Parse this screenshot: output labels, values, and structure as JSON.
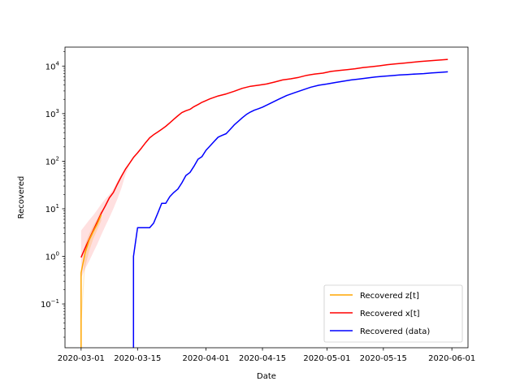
{
  "chart_data": {
    "type": "line",
    "xlabel": "Date",
    "ylabel": "Recovered",
    "y_scale": "log",
    "xlim": [
      "2020-02-26",
      "2020-06-05"
    ],
    "ylim": [
      0.012,
      25000
    ],
    "x_ticks": [
      {
        "date": "2020-03-01",
        "label": "2020-03-01"
      },
      {
        "date": "2020-03-15",
        "label": "2020-03-15"
      },
      {
        "date": "2020-04-01",
        "label": "2020-04-01"
      },
      {
        "date": "2020-04-15",
        "label": "2020-04-15"
      },
      {
        "date": "2020-05-01",
        "label": "2020-05-01"
      },
      {
        "date": "2020-05-15",
        "label": "2020-05-15"
      },
      {
        "date": "2020-06-01",
        "label": "2020-06-01"
      }
    ],
    "y_ticks": [
      {
        "value": 0.1,
        "mantissa": "10",
        "exponent": "−1"
      },
      {
        "value": 1,
        "mantissa": "10",
        "exponent": "0"
      },
      {
        "value": 10,
        "mantissa": "10",
        "exponent": "1"
      },
      {
        "value": 100,
        "mantissa": "10",
        "exponent": "2"
      },
      {
        "value": 1000,
        "mantissa": "10",
        "exponent": "3"
      },
      {
        "value": 10000,
        "mantissa": "10",
        "exponent": "4"
      }
    ],
    "grid": false,
    "legend_position": "lower-right",
    "series": [
      {
        "name": "Recovered z[t]",
        "color": "#ffa500",
        "points": [
          [
            "2020-03-01",
            0.001
          ],
          [
            "2020-03-01",
            0.45
          ],
          [
            "2020-03-02",
            1.2
          ],
          [
            "2020-03-03",
            2.2
          ],
          [
            "2020-03-04",
            3.3
          ],
          [
            "2020-03-05",
            4.8
          ],
          [
            "2020-03-06",
            7.5
          ]
        ],
        "band_color": "#ffa500",
        "band": [
          [
            "2020-03-01",
            0.03,
            0.05
          ],
          [
            "2020-03-02",
            0.6,
            1.8
          ],
          [
            "2020-03-03",
            1.3,
            3.0
          ],
          [
            "2020-03-04",
            2.3,
            4.4
          ],
          [
            "2020-03-05",
            3.6,
            6.2
          ],
          [
            "2020-03-06",
            5.6,
            9.5
          ]
        ]
      },
      {
        "name": "Recovered x[t]",
        "color": "#ff0000",
        "points": [
          [
            "2020-03-01",
            0.95
          ],
          [
            "2020-03-02",
            1.5
          ],
          [
            "2020-03-03",
            2.3
          ],
          [
            "2020-03-04",
            3.5
          ],
          [
            "2020-03-05",
            5.3
          ],
          [
            "2020-03-06",
            8.0
          ],
          [
            "2020-03-07",
            11.5
          ],
          [
            "2020-03-08",
            17
          ],
          [
            "2020-03-09",
            22
          ],
          [
            "2020-03-10",
            33
          ],
          [
            "2020-03-11",
            48
          ],
          [
            "2020-03-12",
            68
          ],
          [
            "2020-03-13",
            90
          ],
          [
            "2020-03-14",
            120
          ],
          [
            "2020-03-15",
            150
          ],
          [
            "2020-03-16",
            190
          ],
          [
            "2020-03-17",
            245
          ],
          [
            "2020-03-18",
            310
          ],
          [
            "2020-03-19",
            360
          ],
          [
            "2020-03-20",
            410
          ],
          [
            "2020-03-21",
            470
          ],
          [
            "2020-03-22",
            540
          ],
          [
            "2020-03-23",
            640
          ],
          [
            "2020-03-24",
            760
          ],
          [
            "2020-03-25",
            900
          ],
          [
            "2020-03-26",
            1050
          ],
          [
            "2020-03-27",
            1150
          ],
          [
            "2020-03-28",
            1230
          ],
          [
            "2020-03-29",
            1400
          ],
          [
            "2020-03-30",
            1550
          ],
          [
            "2020-03-31",
            1730
          ],
          [
            "2020-04-02",
            2050
          ],
          [
            "2020-04-04",
            2350
          ],
          [
            "2020-04-06",
            2600
          ],
          [
            "2020-04-08",
            2950
          ],
          [
            "2020-04-10",
            3400
          ],
          [
            "2020-04-12",
            3750
          ],
          [
            "2020-04-14",
            3950
          ],
          [
            "2020-04-16",
            4200
          ],
          [
            "2020-04-18",
            4600
          ],
          [
            "2020-04-20",
            5100
          ],
          [
            "2020-04-22",
            5400
          ],
          [
            "2020-04-24",
            5800
          ],
          [
            "2020-04-26",
            6400
          ],
          [
            "2020-04-28",
            6800
          ],
          [
            "2020-04-30",
            7100
          ],
          [
            "2020-05-02",
            7700
          ],
          [
            "2020-05-04",
            8100
          ],
          [
            "2020-05-06",
            8400
          ],
          [
            "2020-05-08",
            8800
          ],
          [
            "2020-05-10",
            9300
          ],
          [
            "2020-05-12",
            9700
          ],
          [
            "2020-05-14",
            10100
          ],
          [
            "2020-05-16",
            10700
          ],
          [
            "2020-05-18",
            11100
          ],
          [
            "2020-05-20",
            11500
          ],
          [
            "2020-05-22",
            12000
          ],
          [
            "2020-05-24",
            12400
          ],
          [
            "2020-05-26",
            12800
          ],
          [
            "2020-05-28",
            13200
          ],
          [
            "2020-05-30",
            13600
          ],
          [
            "2020-05-31",
            13800
          ]
        ],
        "band_color": "#ff0000",
        "band": [
          [
            "2020-03-01",
            0.35,
            3.5
          ],
          [
            "2020-03-02",
            0.55,
            4.5
          ],
          [
            "2020-03-03",
            0.8,
            5.8
          ],
          [
            "2020-03-04",
            1.2,
            7.3
          ],
          [
            "2020-03-05",
            1.8,
            9.5
          ],
          [
            "2020-03-06",
            2.8,
            12.5
          ],
          [
            "2020-03-07",
            4.3,
            16
          ],
          [
            "2020-03-08",
            6.5,
            20
          ],
          [
            "2020-03-09",
            10,
            26
          ],
          [
            "2020-03-10",
            16,
            38
          ],
          [
            "2020-03-11",
            27,
            52
          ],
          [
            "2020-03-12",
            52,
            72
          ],
          [
            "2020-03-13",
            85,
            92
          ]
        ]
      },
      {
        "name": "Recovered (data)",
        "color": "#0000ff",
        "points": [
          [
            "2020-03-14",
            0.001
          ],
          [
            "2020-03-14",
            1
          ],
          [
            "2020-03-15",
            4
          ],
          [
            "2020-03-16",
            4
          ],
          [
            "2020-03-17",
            4
          ],
          [
            "2020-03-18",
            4
          ],
          [
            "2020-03-19",
            5
          ],
          [
            "2020-03-20",
            8
          ],
          [
            "2020-03-21",
            13
          ],
          [
            "2020-03-22",
            13
          ],
          [
            "2020-03-23",
            18
          ],
          [
            "2020-03-24",
            22
          ],
          [
            "2020-03-25",
            26
          ],
          [
            "2020-03-26",
            35
          ],
          [
            "2020-03-27",
            50
          ],
          [
            "2020-03-28",
            58
          ],
          [
            "2020-03-29",
            78
          ],
          [
            "2020-03-30",
            110
          ],
          [
            "2020-03-31",
            125
          ],
          [
            "2020-04-01",
            170
          ],
          [
            "2020-04-02",
            210
          ],
          [
            "2020-04-03",
            260
          ],
          [
            "2020-04-04",
            320
          ],
          [
            "2020-04-05",
            350
          ],
          [
            "2020-04-06",
            380
          ],
          [
            "2020-04-07",
            470
          ],
          [
            "2020-04-08",
            580
          ],
          [
            "2020-04-09",
            690
          ],
          [
            "2020-04-10",
            820
          ],
          [
            "2020-04-11",
            960
          ],
          [
            "2020-04-12",
            1080
          ],
          [
            "2020-04-13",
            1180
          ],
          [
            "2020-04-14",
            1270
          ],
          [
            "2020-04-15",
            1370
          ],
          [
            "2020-04-17",
            1650
          ],
          [
            "2020-04-19",
            2000
          ],
          [
            "2020-04-21",
            2400
          ],
          [
            "2020-04-23",
            2750
          ],
          [
            "2020-04-25",
            3150
          ],
          [
            "2020-04-27",
            3600
          ],
          [
            "2020-04-29",
            3950
          ],
          [
            "2020-05-01",
            4200
          ],
          [
            "2020-05-03",
            4500
          ],
          [
            "2020-05-05",
            4800
          ],
          [
            "2020-05-07",
            5100
          ],
          [
            "2020-05-09",
            5350
          ],
          [
            "2020-05-11",
            5600
          ],
          [
            "2020-05-13",
            5900
          ],
          [
            "2020-05-15",
            6100
          ],
          [
            "2020-05-17",
            6300
          ],
          [
            "2020-05-19",
            6500
          ],
          [
            "2020-05-21",
            6650
          ],
          [
            "2020-05-23",
            6800
          ],
          [
            "2020-05-25",
            6950
          ],
          [
            "2020-05-27",
            7150
          ],
          [
            "2020-05-29",
            7350
          ],
          [
            "2020-05-31",
            7550
          ]
        ]
      }
    ]
  }
}
